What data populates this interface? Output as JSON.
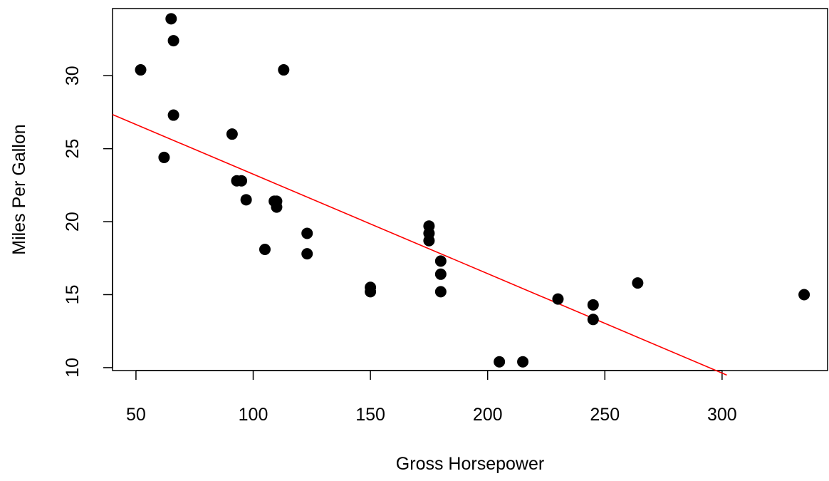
{
  "colors": {
    "points": "#000000",
    "fit_line": "#ff0000",
    "axes": "#000000",
    "background": "#ffffff"
  },
  "chart_data": {
    "type": "scatter",
    "title": "",
    "xlabel": "Gross Horsepower",
    "ylabel": "Miles Per Gallon",
    "xlim": [
      40,
      345
    ],
    "ylim": [
      9.8,
      34.6
    ],
    "xticks": [
      50,
      100,
      150,
      200,
      250,
      300
    ],
    "yticks": [
      10,
      15,
      20,
      25,
      30
    ],
    "grid": false,
    "legend": "none",
    "points": [
      {
        "x": 110,
        "y": 21.0
      },
      {
        "x": 110,
        "y": 21.4
      },
      {
        "x": 109,
        "y": 21.4
      },
      {
        "x": 93,
        "y": 22.8
      },
      {
        "x": 95,
        "y": 22.8
      },
      {
        "x": 175,
        "y": 18.7
      },
      {
        "x": 105,
        "y": 18.1
      },
      {
        "x": 245,
        "y": 14.3
      },
      {
        "x": 62,
        "y": 24.4
      },
      {
        "x": 123,
        "y": 19.2
      },
      {
        "x": 123,
        "y": 17.8
      },
      {
        "x": 180,
        "y": 16.4
      },
      {
        "x": 180,
        "y": 17.3
      },
      {
        "x": 180,
        "y": 15.2
      },
      {
        "x": 205,
        "y": 10.4
      },
      {
        "x": 215,
        "y": 10.4
      },
      {
        "x": 66,
        "y": 32.4
      },
      {
        "x": 52,
        "y": 30.4
      },
      {
        "x": 65,
        "y": 33.9
      },
      {
        "x": 97,
        "y": 21.5
      },
      {
        "x": 150,
        "y": 15.5
      },
      {
        "x": 150,
        "y": 15.2
      },
      {
        "x": 245,
        "y": 13.3
      },
      {
        "x": 175,
        "y": 19.2
      },
      {
        "x": 66,
        "y": 27.3
      },
      {
        "x": 91,
        "y": 26.0
      },
      {
        "x": 113,
        "y": 30.4
      },
      {
        "x": 264,
        "y": 15.8
      },
      {
        "x": 175,
        "y": 19.7
      },
      {
        "x": 335,
        "y": 15.0
      },
      {
        "x": 230,
        "y": 14.7
      }
    ],
    "fit_line": {
      "x": [
        40,
        302
      ],
      "y": [
        27.34,
        9.49
      ]
    }
  }
}
